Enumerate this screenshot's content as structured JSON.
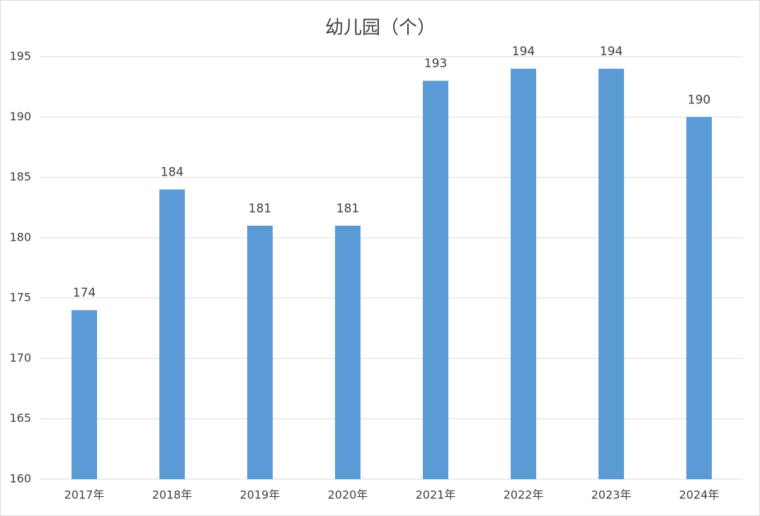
{
  "chart_data": {
    "type": "bar",
    "title": "幼儿园（个）",
    "categories": [
      "2017年",
      "2018年",
      "2019年",
      "2020年",
      "2021年",
      "2022年",
      "2023年",
      "2024年"
    ],
    "values": [
      174,
      184,
      181,
      181,
      193,
      194,
      194,
      190
    ],
    "color": "#5b9bd5",
    "ylim": [
      160,
      195
    ],
    "yticks": [
      160,
      165,
      170,
      175,
      180,
      185,
      190,
      195
    ],
    "grid": true
  }
}
